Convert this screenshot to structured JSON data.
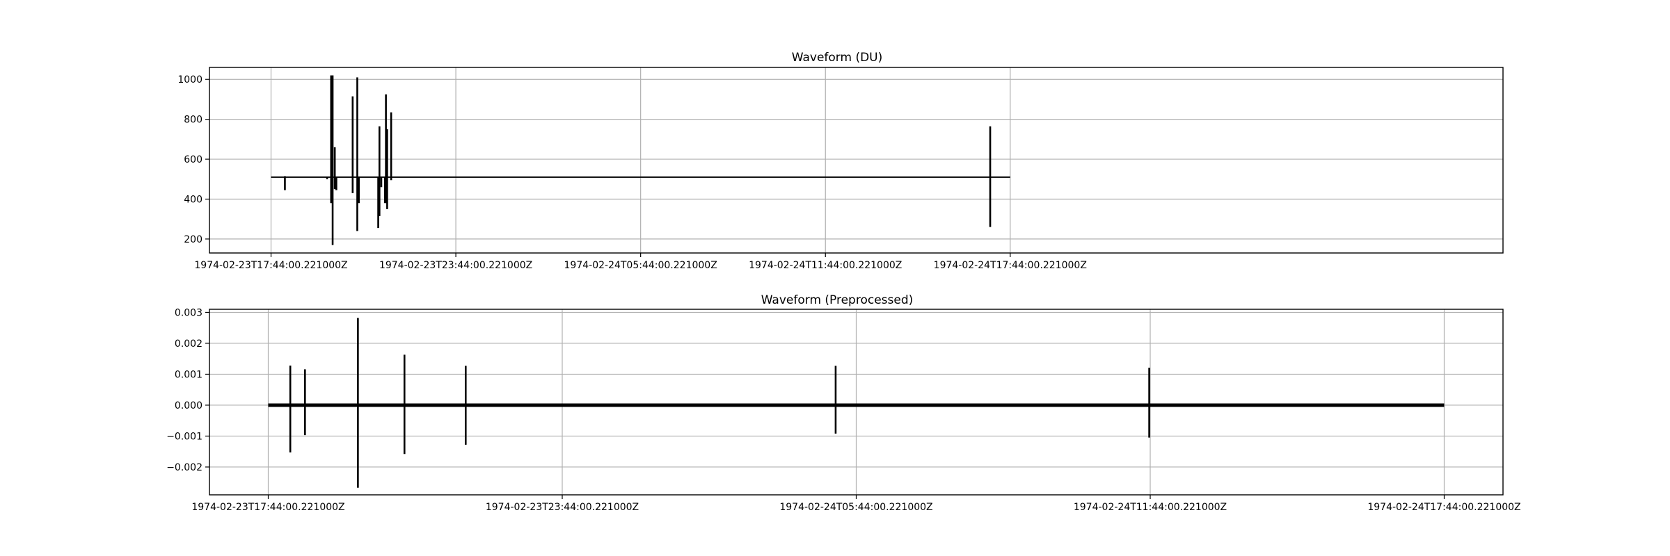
{
  "chart_data": [
    {
      "type": "line",
      "title": "Waveform (DU)",
      "xlabel": "",
      "ylabel": "",
      "x_unit": "hours since 1974-02-23T17:44:00.221000Z",
      "xlim": [
        -2,
        40
      ],
      "ylim": [
        130,
        1060
      ],
      "grid": true,
      "line_color": "#000000",
      "baseline": 510,
      "x_ticks": [
        0,
        6,
        12,
        18,
        24
      ],
      "x_tick_labels": [
        "1974-02-23T17:44:00.221000Z",
        "1974-02-23T23:44:00.221000Z",
        "1974-02-24T05:44:00.221000Z",
        "1974-02-24T11:44:00.221000Z",
        "1974-02-24T17:44:00.221000Z"
      ],
      "y_ticks": [
        200,
        400,
        600,
        800,
        1000
      ],
      "y_tick_labels": [
        "200",
        "400",
        "600",
        "800",
        "1000"
      ],
      "x_extent": [
        0,
        24
      ],
      "spikes": [
        {
          "x": 0.45,
          "min": 445,
          "max": 515
        },
        {
          "x": 1.82,
          "min": 500,
          "max": 510
        },
        {
          "x": 1.95,
          "min": 380,
          "max": 1020
        },
        {
          "x": 2.0,
          "min": 170,
          "max": 1020
        },
        {
          "x": 2.07,
          "min": 450,
          "max": 660
        },
        {
          "x": 2.12,
          "min": 445,
          "max": 510
        },
        {
          "x": 2.65,
          "min": 430,
          "max": 915
        },
        {
          "x": 2.8,
          "min": 240,
          "max": 1010
        },
        {
          "x": 2.85,
          "min": 380,
          "max": 510
        },
        {
          "x": 3.48,
          "min": 255,
          "max": 510
        },
        {
          "x": 3.52,
          "min": 315,
          "max": 765
        },
        {
          "x": 3.58,
          "min": 460,
          "max": 510
        },
        {
          "x": 3.7,
          "min": 380,
          "max": 510
        },
        {
          "x": 3.73,
          "min": 380,
          "max": 925
        },
        {
          "x": 3.77,
          "min": 350,
          "max": 750
        },
        {
          "x": 3.9,
          "min": 495,
          "max": 835
        },
        {
          "x": 23.35,
          "min": 260,
          "max": 765
        }
      ]
    },
    {
      "type": "line",
      "title": "Waveform (Preprocessed)",
      "xlabel": "",
      "ylabel": "",
      "x_unit": "hours since 1974-02-23T17:44:00.221000Z",
      "xlim": [
        -1.2,
        25.2
      ],
      "ylim": [
        -0.0029,
        0.0031
      ],
      "grid": true,
      "line_color": "#000000",
      "baseline": 0.0,
      "x_ticks": [
        0,
        6,
        12,
        18,
        24
      ],
      "x_tick_labels": [
        "1974-02-23T17:44:00.221000Z",
        "1974-02-23T23:44:00.221000Z",
        "1974-02-24T05:44:00.221000Z",
        "1974-02-24T11:44:00.221000Z",
        "1974-02-24T17:44:00.221000Z"
      ],
      "y_ticks": [
        -0.002,
        -0.001,
        0.0,
        0.001,
        0.002,
        0.003
      ],
      "y_tick_labels": [
        "−0.002",
        "−0.001",
        "0.000",
        "0.001",
        "0.002",
        "0.003"
      ],
      "x_extent": [
        0,
        24
      ],
      "spikes": [
        {
          "x": 0.45,
          "min": -0.00153,
          "max": 0.00128
        },
        {
          "x": 0.75,
          "min": -0.00097,
          "max": 0.00116
        },
        {
          "x": 1.83,
          "min": -0.00267,
          "max": 0.00282
        },
        {
          "x": 2.78,
          "min": -0.00158,
          "max": 0.00163
        },
        {
          "x": 4.03,
          "min": -0.00128,
          "max": 0.00127
        },
        {
          "x": 11.58,
          "min": -0.00092,
          "max": 0.00127
        },
        {
          "x": 17.98,
          "min": -0.00105,
          "max": 0.00121
        }
      ]
    }
  ]
}
